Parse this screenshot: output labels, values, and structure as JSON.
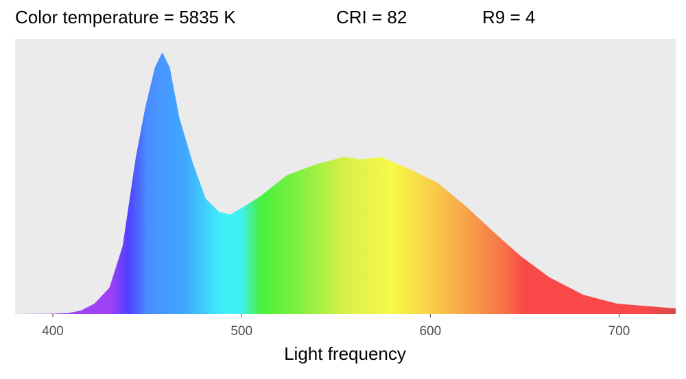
{
  "chart_data": {
    "type": "area",
    "annotations": [
      "Color temperature = 5835 K",
      "CRI = 82",
      "R9 = 4"
    ],
    "x_label": "Light frequency",
    "x": [
      380,
      400,
      408,
      415,
      422,
      430,
      437,
      444,
      449,
      454,
      458,
      462,
      467,
      474,
      481,
      488,
      494,
      499,
      510,
      524,
      539,
      554,
      563,
      574,
      590,
      604,
      619,
      634,
      648,
      663,
      681,
      699,
      730
    ],
    "values": [
      0,
      0.001,
      0.003,
      0.013,
      0.039,
      0.1,
      0.26,
      0.6,
      0.79,
      0.94,
      1.0,
      0.94,
      0.75,
      0.58,
      0.44,
      0.39,
      0.38,
      0.4,
      0.45,
      0.53,
      0.57,
      0.6,
      0.59,
      0.6,
      0.55,
      0.5,
      0.41,
      0.31,
      0.22,
      0.14,
      0.073,
      0.039,
      0.021
    ],
    "xlim": [
      380,
      730
    ],
    "xticks": [
      400,
      500,
      600,
      700
    ],
    "ylim": [
      0,
      1.05
    ],
    "grid": false
  }
}
